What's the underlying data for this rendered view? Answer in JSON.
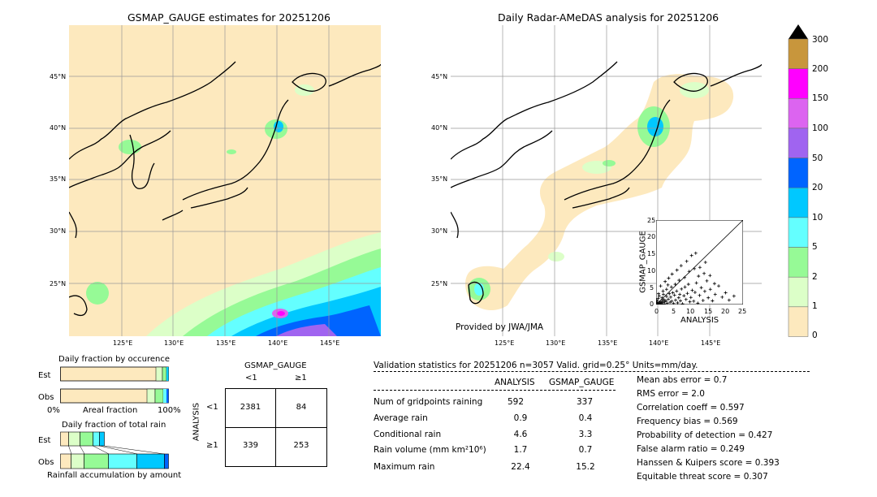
{
  "maps": {
    "left_title": "GSMAP_GAUGE estimates for 20251206",
    "right_title": "Daily Radar-AMeDAS analysis for 20251206",
    "lat_ticks": [
      "45°N",
      "40°N",
      "35°N",
      "30°N",
      "25°N"
    ],
    "lon_ticks": [
      "125°E",
      "130°E",
      "135°E",
      "140°E",
      "145°E"
    ],
    "credit": "Provided by JWA/JMA"
  },
  "colorbar": {
    "ticks": [
      "300",
      "200",
      "150",
      "100",
      "50",
      "20",
      "10",
      "5",
      "2",
      "1",
      "0"
    ],
    "colors": [
      "#c8963c",
      "#ff00ff",
      "#dc64f0",
      "#a064f0",
      "#0064ff",
      "#00c8ff",
      "#64ffff",
      "#96fa96",
      "#dcffc8",
      "#fde9be"
    ]
  },
  "fractions": {
    "occurrence_title": "Daily fraction by occurence",
    "total_title": "Daily fraction of total rain",
    "est_label": "Est",
    "obs_label": "Obs",
    "axis_left": "0%",
    "axis_mid": "Areal fraction",
    "axis_right": "100%",
    "accum_label": "Rainfall accumulation by amount"
  },
  "contingency": {
    "title": "GSMAP_GAUGE",
    "col_lt": "<1",
    "col_ge": "≥1",
    "row_axis": "ANALYSIS",
    "row_lt": "<1",
    "row_ge": "≥1",
    "cells": [
      "2381",
      "84",
      "339",
      "253"
    ]
  },
  "stats": {
    "header": "Validation statistics for 20251206  n=3057 Valid. grid=0.25° Units=mm/day.",
    "col_analysis": "ANALYSIS",
    "col_gsmap": "GSMAP_GAUGE",
    "rows": [
      {
        "label": "Num of gridpoints raining",
        "a": "592",
        "g": "337"
      },
      {
        "label": "Average rain",
        "a": "0.9",
        "g": "0.4"
      },
      {
        "label": "Conditional rain",
        "a": "4.6",
        "g": "3.3"
      },
      {
        "label": "Rain volume (mm km²10⁶)",
        "a": "1.7",
        "g": "0.7"
      },
      {
        "label": "Maximum rain",
        "a": "22.4",
        "g": "15.2"
      }
    ],
    "scores": [
      "Mean abs error =    0.7",
      "RMS error =    2.0",
      "Correlation coeff =  0.597",
      "Frequency bias =  0.569",
      "Probability of detection =  0.427",
      "False alarm ratio =  0.249",
      "Hanssen & Kuipers score =  0.393",
      "Equitable threat score =  0.307"
    ]
  },
  "chart_data": {
    "type": "scatter",
    "xlabel": "ANALYSIS",
    "ylabel": "GSMAP_GAUGE",
    "xlim": [
      0,
      25
    ],
    "ylim": [
      0,
      25
    ],
    "ticks": [
      "0",
      "5",
      "10",
      "15",
      "20",
      "25"
    ],
    "points": [
      [
        0.3,
        0.2
      ],
      [
        0.5,
        0.1
      ],
      [
        0.8,
        0.4
      ],
      [
        1.0,
        0.3
      ],
      [
        1.2,
        0.8
      ],
      [
        1.5,
        0.5
      ],
      [
        1.8,
        1.2
      ],
      [
        2.0,
        0.6
      ],
      [
        2.2,
        1.5
      ],
      [
        2.5,
        0.9
      ],
      [
        0.4,
        1.0
      ],
      [
        0.6,
        1.8
      ],
      [
        0.9,
        2.5
      ],
      [
        1.1,
        0.0
      ],
      [
        1.4,
        0.2
      ],
      [
        1.7,
        2.0
      ],
      [
        2.1,
        3.0
      ],
      [
        2.4,
        0.1
      ],
      [
        2.8,
        1.1
      ],
      [
        3.0,
        2.4
      ],
      [
        3.2,
        0.4
      ],
      [
        3.5,
        1.6
      ],
      [
        3.8,
        3.2
      ],
      [
        4.0,
        0.7
      ],
      [
        4.2,
        2.2
      ],
      [
        4.5,
        1.0
      ],
      [
        4.8,
        3.5
      ],
      [
        5.0,
        0.3
      ],
      [
        5.3,
        2.8
      ],
      [
        5.6,
        1.3
      ],
      [
        5.9,
        4.0
      ],
      [
        6.2,
        0.5
      ],
      [
        6.5,
        2.0
      ],
      [
        6.8,
        3.0
      ],
      [
        7.0,
        1.1
      ],
      [
        7.3,
        4.6
      ],
      [
        7.6,
        0.2
      ],
      [
        8.0,
        2.6
      ],
      [
        8.3,
        5.2
      ],
      [
        8.6,
        1.5
      ],
      [
        9.0,
        3.3
      ],
      [
        9.3,
        6.0
      ],
      [
        9.7,
        0.8
      ],
      [
        10.0,
        2.1
      ],
      [
        10.4,
        4.2
      ],
      [
        10.8,
        1.0
      ],
      [
        11.2,
        3.6
      ],
      [
        11.6,
        6.4
      ],
      [
        12.0,
        0.4
      ],
      [
        12.5,
        2.7
      ],
      [
        13.0,
        5.0
      ],
      [
        13.5,
        1.2
      ],
      [
        14.0,
        3.9
      ],
      [
        14.6,
        7.0
      ],
      [
        15.0,
        2.0
      ],
      [
        15.6,
        4.5
      ],
      [
        16.2,
        1.1
      ],
      [
        17.0,
        3.0
      ],
      [
        18.0,
        5.5
      ],
      [
        19.0,
        2.2
      ],
      [
        20.0,
        3.5
      ],
      [
        21.0,
        1.3
      ],
      [
        22.4,
        2.5
      ],
      [
        1.3,
        5.5
      ],
      [
        2.6,
        6.8
      ],
      [
        3.6,
        7.8
      ],
      [
        4.6,
        9.0
      ],
      [
        6.0,
        10.2
      ],
      [
        7.2,
        11.5
      ],
      [
        8.8,
        12.8
      ],
      [
        10.2,
        14.5
      ],
      [
        11.4,
        15.2
      ],
      [
        12.6,
        11.0
      ],
      [
        9.5,
        9.8
      ],
      [
        5.5,
        6.0
      ],
      [
        3.0,
        4.5
      ],
      [
        2.0,
        4.0
      ],
      [
        0.7,
        3.2
      ],
      [
        0.2,
        0.6
      ],
      [
        0.1,
        1.4
      ],
      [
        13.8,
        9.2
      ],
      [
        15.5,
        8.6
      ],
      [
        16.8,
        6.2
      ],
      [
        14.2,
        12.5
      ],
      [
        12.2,
        8.4
      ],
      [
        11.0,
        10.6
      ],
      [
        8.2,
        8.0
      ],
      [
        6.6,
        7.2
      ],
      [
        4.4,
        5.2
      ],
      [
        3.4,
        5.8
      ]
    ]
  }
}
